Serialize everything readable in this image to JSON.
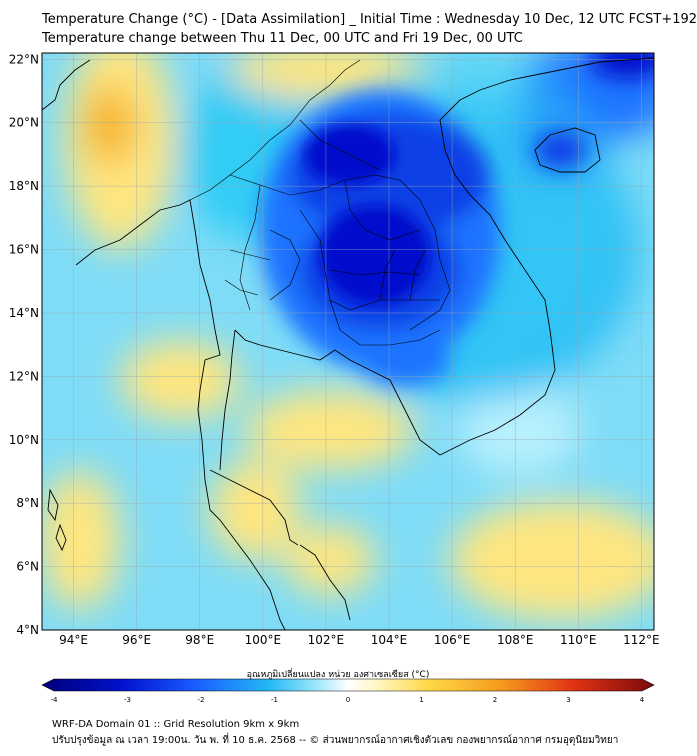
{
  "header": {
    "title_line1": "Temperature Change (°C) - [Data Assimilation] _ Initial Time : Wednesday 10 Dec, 12 UTC FCST+192",
    "title_line2": "Temperature change between Thu 11 Dec, 00 UTC and Fri 19 Dec, 00 UTC"
  },
  "map": {
    "lat_labels": [
      "4°N",
      "6°N",
      "8°N",
      "10°N",
      "12°N",
      "14°N",
      "16°N",
      "18°N",
      "20°N",
      "22°N"
    ],
    "lon_labels": [
      "94°E",
      "96°E",
      "98°E",
      "100°E",
      "102°E",
      "104°E",
      "106°E",
      "108°E",
      "110°E",
      "112°E"
    ],
    "extent": {
      "lon_min": 93,
      "lon_max": 112.4,
      "lat_min": 4,
      "lat_max": 22.2
    },
    "colors": {
      "strong_cold": "#0011cc",
      "cold": "#1a73ff",
      "cool": "#33ccf5",
      "mild": "#9ee8fb",
      "warm": "#ffe680",
      "hot": "#f5b01e"
    }
  },
  "colorbar": {
    "label": "อุณหภูมิเปลี่ยนแปลง หน่วย องศาเซลเซียส (°C)",
    "ticks": [
      "-4",
      "-3",
      "-2",
      "-1",
      "0",
      "1",
      "2",
      "3",
      "4"
    ],
    "min": -4,
    "max": 4
  },
  "footer": {
    "line1": "WRF-DA Domain 01 :: Grid Resolution 9km x 9km",
    "line2": "ปรับปรุงข้อมูล ณ เวลา 19:00น. วัน พ. ที่ 10 ธ.ค. 2568 -- © ส่วนพยากรณ์อากาศเชิงตัวเลข กองพยากรณ์อากาศ กรมอุตุนิยมวิทยา"
  }
}
